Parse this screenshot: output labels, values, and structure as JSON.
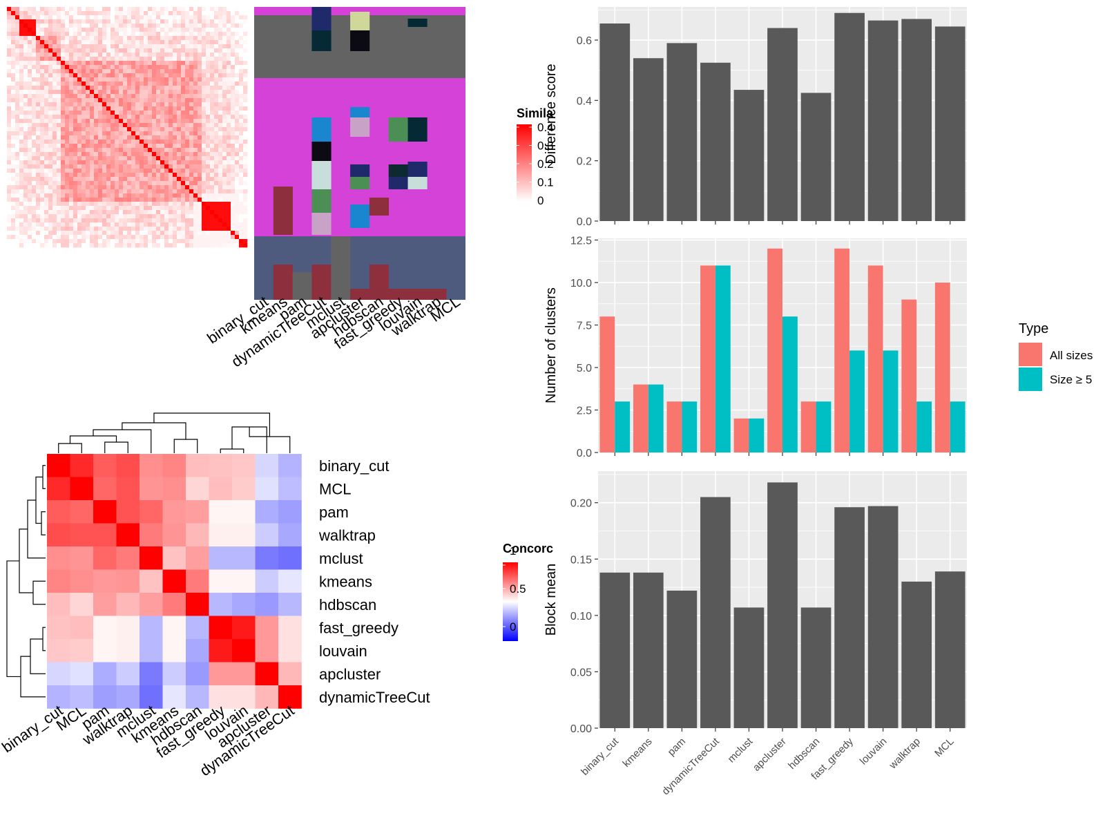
{
  "methods_bar": [
    "binary_cut",
    "kmeans",
    "pam",
    "dynamicTreeCut",
    "mclust",
    "apcluster",
    "hdbscan",
    "fast_greedy",
    "louvain",
    "walktrap",
    "MCL"
  ],
  "methods_concordance": [
    "binary_cut",
    "MCL",
    "pam",
    "walktrap",
    "mclust",
    "kmeans",
    "hdbscan",
    "fast_greedy",
    "louvain",
    "apcluster",
    "dynamicTreeCut"
  ],
  "similarity_legend": {
    "title": "Simila",
    "ticks": [
      "0.4",
      "0.3",
      "0.2",
      "0.1",
      "0"
    ]
  },
  "concordance_legend": {
    "title": "Concorc",
    "ticks": [
      "1",
      "0.5",
      "0"
    ]
  },
  "type_legend": {
    "title": "Type",
    "items": [
      {
        "label": "All sizes",
        "color": "#F8766D"
      },
      {
        "label": "Size ≥ 5",
        "color": "#00BFC4"
      }
    ]
  },
  "colors": {
    "bar": "#595959",
    "panel_bg": "#EBEBEB",
    "all_sizes": "#F8766D",
    "size5": "#00BFC4",
    "heat_red": "#FF0000",
    "heat_blue": "#0000FF"
  },
  "chart_data": [
    {
      "type": "bar",
      "categories": [
        "binary_cut",
        "kmeans",
        "pam",
        "dynamicTreeCut",
        "mclust",
        "apcluster",
        "hdbscan",
        "fast_greedy",
        "louvain",
        "walktrap",
        "MCL"
      ],
      "values": [
        0.655,
        0.54,
        0.59,
        0.525,
        0.435,
        0.64,
        0.425,
        0.69,
        0.665,
        0.67,
        0.645
      ],
      "ylabel": "Difference score",
      "ylim": [
        0,
        0.71
      ],
      "yticks": [
        "0.0",
        "0.2",
        "0.4",
        "0.6"
      ]
    },
    {
      "type": "bar",
      "categories": [
        "binary_cut",
        "kmeans",
        "pam",
        "dynamicTreeCut",
        "mclust",
        "apcluster",
        "hdbscan",
        "fast_greedy",
        "louvain",
        "walktrap",
        "MCL"
      ],
      "series": [
        {
          "name": "All sizes",
          "values": [
            8,
            4,
            3,
            11,
            2,
            12,
            3,
            12,
            11,
            9,
            10
          ]
        },
        {
          "name": "Size ≥ 5",
          "values": [
            3,
            4,
            3,
            11,
            2,
            8,
            3,
            6,
            6,
            3,
            3
          ]
        }
      ],
      "ylabel": "Number of clusters",
      "ylim": [
        0,
        12.6
      ],
      "yticks": [
        "0.0",
        "2.5",
        "5.0",
        "7.5",
        "10.0",
        "12.5"
      ]
    },
    {
      "type": "bar",
      "categories": [
        "binary_cut",
        "kmeans",
        "pam",
        "dynamicTreeCut",
        "mclust",
        "apcluster",
        "hdbscan",
        "fast_greedy",
        "louvain",
        "walktrap",
        "MCL"
      ],
      "values": [
        0.138,
        0.138,
        0.122,
        0.205,
        0.107,
        0.218,
        0.107,
        0.196,
        0.197,
        0.13,
        0.139
      ],
      "ylabel": "Block mean",
      "ylim": [
        0,
        0.228
      ],
      "yticks": [
        "0.00",
        "0.05",
        "0.10",
        "0.15",
        "0.20"
      ]
    },
    {
      "type": "heatmap",
      "rows": [
        "binary_cut",
        "MCL",
        "pam",
        "walktrap",
        "mclust",
        "kmeans",
        "hdbscan",
        "fast_greedy",
        "louvain",
        "apcluster",
        "dynamicTreeCut"
      ],
      "columns": [
        "binary_cut",
        "MCL",
        "pam",
        "walktrap",
        "mclust",
        "kmeans",
        "hdbscan",
        "fast_greedy",
        "louvain",
        "apcluster",
        "dynamicTreeCut"
      ],
      "values": [
        [
          1.0,
          0.92,
          0.82,
          0.85,
          0.72,
          0.74,
          0.63,
          0.62,
          0.61,
          0.42,
          0.35
        ],
        [
          0.92,
          1.0,
          0.8,
          0.84,
          0.71,
          0.72,
          0.58,
          0.63,
          0.6,
          0.44,
          0.37
        ],
        [
          0.82,
          0.8,
          1.0,
          0.84,
          0.8,
          0.7,
          0.69,
          0.52,
          0.52,
          0.34,
          0.31
        ],
        [
          0.85,
          0.84,
          0.84,
          1.0,
          0.76,
          0.71,
          0.64,
          0.53,
          0.53,
          0.4,
          0.33
        ],
        [
          0.72,
          0.71,
          0.8,
          0.76,
          1.0,
          0.62,
          0.69,
          0.36,
          0.36,
          0.24,
          0.22
        ],
        [
          0.74,
          0.72,
          0.7,
          0.71,
          0.62,
          1.0,
          0.76,
          0.52,
          0.52,
          0.4,
          0.45
        ],
        [
          0.63,
          0.58,
          0.69,
          0.64,
          0.69,
          0.76,
          1.0,
          0.36,
          0.33,
          0.3,
          0.36
        ],
        [
          0.62,
          0.63,
          0.52,
          0.53,
          0.36,
          0.52,
          0.36,
          1.0,
          0.95,
          0.7,
          0.56
        ],
        [
          0.61,
          0.6,
          0.52,
          0.53,
          0.36,
          0.52,
          0.33,
          0.95,
          1.0,
          0.7,
          0.56
        ],
        [
          0.42,
          0.44,
          0.34,
          0.4,
          0.24,
          0.4,
          0.3,
          0.7,
          0.7,
          1.0,
          0.64
        ],
        [
          0.35,
          0.37,
          0.31,
          0.33,
          0.22,
          0.45,
          0.36,
          0.56,
          0.56,
          0.64,
          1.0
        ]
      ],
      "legend_title": "Concorc",
      "range": [
        0,
        1
      ]
    }
  ]
}
